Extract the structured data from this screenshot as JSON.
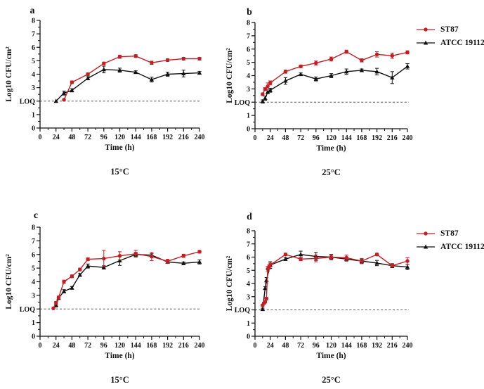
{
  "figure": {
    "legend": {
      "series": [
        {
          "label": "ST87",
          "color": "#c41e25",
          "marker": "circle"
        },
        {
          "label": "ATCC 19112",
          "color": "#111111",
          "marker": "triangle"
        }
      ]
    },
    "loq_label": "LOQ",
    "axis_color": "#111111",
    "dashed_line_color": "#555555"
  },
  "chart_data": [
    {
      "panel": "a",
      "type": "line",
      "temperature_label": "15°C",
      "xlabel": "Time (h)",
      "ylabel": "Log10 CFU/cm²",
      "xlim": [
        0,
        240
      ],
      "ylim": [
        0,
        8
      ],
      "xticks": [
        0,
        24,
        48,
        72,
        96,
        120,
        144,
        168,
        192,
        216,
        240
      ],
      "xminor_step": 12,
      "ytick_vals": [
        0,
        1,
        2,
        3,
        4,
        5,
        6,
        7,
        8
      ],
      "ytick_labels": [
        "0",
        "1",
        "LOQ",
        "3",
        "4",
        "5",
        "6",
        "7",
        "8"
      ],
      "loq_value": 2,
      "show_legend": false,
      "series": [
        {
          "name": "ST87",
          "color": "#c41e25",
          "marker": "circle",
          "x": [
            36,
            48,
            72,
            96,
            120,
            144,
            168,
            192,
            216,
            240
          ],
          "y": [
            2.1,
            3.4,
            4.0,
            4.8,
            5.3,
            5.35,
            4.85,
            5.05,
            5.15,
            5.15
          ],
          "err": [
            0,
            0.1,
            0.1,
            0.1,
            0.12,
            0.1,
            0.12,
            0.1,
            0.1,
            0.1
          ]
        },
        {
          "name": "ATCC 19112",
          "color": "#111111",
          "marker": "triangle",
          "x": [
            24,
            36,
            48,
            72,
            96,
            120,
            144,
            168,
            192,
            216,
            240
          ],
          "y": [
            2.0,
            2.6,
            2.8,
            3.7,
            4.35,
            4.3,
            4.15,
            3.6,
            4.0,
            4.05,
            4.1
          ],
          "err": [
            0,
            0.15,
            0.12,
            0.12,
            0.25,
            0.15,
            0.1,
            0.18,
            0.15,
            0.25,
            0.1
          ]
        }
      ]
    },
    {
      "panel": "b",
      "type": "line",
      "temperature_label": "25°C",
      "xlabel": "Time (h)",
      "ylabel": "Log10 CFU/cm²",
      "xlim": [
        0,
        240
      ],
      "ylim": [
        0,
        8
      ],
      "xticks": [
        0,
        24,
        48,
        72,
        96,
        120,
        144,
        168,
        192,
        216,
        240
      ],
      "xminor_step": 12,
      "ytick_vals": [
        0,
        1,
        2,
        3,
        4,
        5,
        6,
        7,
        8
      ],
      "ytick_labels": [
        "0",
        "1",
        "LOQ",
        "3",
        "4",
        "5",
        "6",
        "7",
        "8"
      ],
      "loq_value": 2,
      "show_legend": true,
      "series": [
        {
          "name": "ST87",
          "color": "#c41e25",
          "marker": "circle",
          "x": [
            12,
            16,
            20,
            24,
            48,
            72,
            96,
            120,
            144,
            168,
            192,
            216,
            240
          ],
          "y": [
            2.6,
            3.0,
            3.2,
            3.45,
            4.3,
            4.7,
            4.95,
            5.25,
            5.8,
            5.15,
            5.6,
            5.5,
            5.75
          ],
          "err": [
            0.1,
            0.1,
            0.25,
            0.15,
            0.12,
            0.1,
            0.15,
            0.15,
            0.12,
            0.12,
            0.2,
            0.2,
            0.12
          ]
        },
        {
          "name": "ATCC 19112",
          "color": "#111111",
          "marker": "triangle",
          "x": [
            12,
            16,
            20,
            24,
            48,
            72,
            96,
            120,
            144,
            168,
            192,
            216,
            240
          ],
          "y": [
            2.05,
            2.3,
            2.75,
            2.9,
            3.6,
            4.1,
            3.75,
            4.0,
            4.3,
            4.4,
            4.3,
            3.85,
            4.7
          ],
          "err": [
            0.12,
            0.15,
            0.1,
            0.15,
            0.25,
            0.1,
            0.15,
            0.15,
            0.2,
            0.1,
            0.25,
            0.45,
            0.2
          ]
        }
      ]
    },
    {
      "panel": "c",
      "type": "line",
      "temperature_label": "15°C",
      "xlabel": "Time (h)",
      "ylabel": "Log10 CFU/cm²",
      "xlim": [
        0,
        240
      ],
      "ylim": [
        0,
        8
      ],
      "xticks": [
        0,
        24,
        48,
        72,
        96,
        120,
        144,
        168,
        192,
        216,
        240
      ],
      "xminor_step": 12,
      "ytick_vals": [
        0,
        1,
        2,
        3,
        4,
        5,
        6,
        7,
        8
      ],
      "ytick_labels": [
        "0",
        "1",
        "LOQ",
        "3",
        "4",
        "5",
        "6",
        "7",
        "8"
      ],
      "loq_value": 2,
      "show_legend": false,
      "series": [
        {
          "name": "ST87",
          "color": "#c41e25",
          "marker": "circle",
          "x": [
            20,
            24,
            28,
            36,
            48,
            60,
            72,
            96,
            120,
            144,
            168,
            192,
            216,
            240
          ],
          "y": [
            2.05,
            2.45,
            2.85,
            4.0,
            4.4,
            4.9,
            5.65,
            5.7,
            5.9,
            6.05,
            5.85,
            5.5,
            5.9,
            6.2
          ],
          "err": [
            0,
            0.1,
            0.1,
            0.12,
            0.1,
            0.1,
            0.1,
            0.6,
            0.3,
            0.25,
            0.3,
            0.15,
            0.12,
            0.1
          ]
        },
        {
          "name": "ATCC 19112",
          "color": "#111111",
          "marker": "triangle",
          "x": [
            24,
            28,
            36,
            48,
            60,
            72,
            96,
            120,
            144,
            168,
            192,
            216,
            240
          ],
          "y": [
            2.3,
            2.8,
            3.3,
            3.55,
            4.5,
            5.15,
            5.05,
            5.55,
            6.0,
            5.95,
            5.45,
            5.35,
            5.45
          ],
          "err": [
            0.15,
            0.1,
            0.12,
            0.1,
            0.1,
            0.15,
            0.12,
            0.35,
            0.15,
            0.1,
            0.1,
            0.1,
            0.15
          ]
        }
      ]
    },
    {
      "panel": "d",
      "type": "line",
      "temperature_label": "25°C",
      "xlabel": "Time (h)",
      "ylabel": "Log10 CFU/cm²",
      "xlim": [
        0,
        240
      ],
      "ylim": [
        0,
        8
      ],
      "xticks": [
        0,
        24,
        48,
        72,
        96,
        120,
        144,
        168,
        192,
        216,
        240
      ],
      "xminor_step": 12,
      "ytick_vals": [
        0,
        1,
        2,
        3,
        4,
        5,
        6,
        7,
        8
      ],
      "ytick_labels": [
        "0",
        "1",
        "LOQ",
        "3",
        "4",
        "5",
        "6",
        "7",
        "8"
      ],
      "loq_value": 2,
      "show_legend": true,
      "series": [
        {
          "name": "ST87",
          "color": "#c41e25",
          "marker": "circle",
          "x": [
            12,
            14,
            16,
            18,
            20,
            22,
            24,
            48,
            72,
            96,
            120,
            144,
            168,
            192,
            216,
            240
          ],
          "y": [
            2.35,
            2.5,
            2.6,
            2.85,
            5.1,
            5.25,
            5.4,
            6.2,
            5.85,
            5.9,
            6.0,
            5.95,
            5.7,
            6.2,
            5.35,
            5.7
          ],
          "err": [
            0.08,
            0.08,
            0.08,
            0.1,
            0.2,
            0.15,
            0.15,
            0.1,
            0.12,
            0.25,
            0.15,
            0.2,
            0.2,
            0.1,
            0.1,
            0.25
          ]
        },
        {
          "name": "ATCC 19112",
          "color": "#111111",
          "marker": "triangle",
          "x": [
            12,
            16,
            18,
            24,
            48,
            72,
            96,
            120,
            144,
            168,
            192,
            216,
            240
          ],
          "y": [
            2.05,
            3.65,
            4.25,
            5.4,
            5.85,
            6.2,
            6.05,
            6.0,
            5.85,
            5.7,
            5.55,
            5.35,
            5.25
          ],
          "err": [
            0.08,
            0.12,
            0.2,
            0.25,
            0.1,
            0.25,
            0.3,
            0.2,
            0.15,
            0.15,
            0.2,
            0.15,
            0.2
          ]
        }
      ]
    }
  ]
}
